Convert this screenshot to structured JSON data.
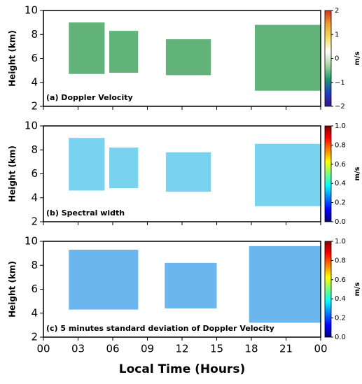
{
  "chart_data": [
    {
      "type": "heatmap",
      "panel_label": "(a) Doppler Velocity",
      "ylabel": "Height (km)",
      "ylim": [
        2,
        10
      ],
      "yticks": [
        2,
        4,
        6,
        8,
        10
      ],
      "regions": [
        {
          "x": [
            2.2,
            5.3
          ],
          "y": [
            4.7,
            9
          ]
        },
        {
          "x": [
            5.7,
            8.2
          ],
          "y": [
            4.8,
            8.3
          ]
        },
        {
          "x": [
            10.6,
            14.5
          ],
          "y": [
            4.6,
            7.6
          ]
        },
        {
          "x": [
            18.3,
            24
          ],
          "y": [
            3.3,
            8.8
          ]
        }
      ],
      "region_color": "#2e9a4e",
      "colorbar": {
        "label": "m/s",
        "lim": [
          -2,
          2
        ],
        "colors": [
          "#3b0f8c",
          "#1f3fbf",
          "#1f9a6a",
          "#a8d8a0",
          "#ffffff",
          "#f2e060",
          "#f0a030",
          "#d03020"
        ],
        "ticks": [
          {
            "value": -2,
            "label": "−2"
          },
          {
            "value": -1,
            "label": "−1"
          },
          0,
          1,
          2
        ]
      }
    },
    {
      "type": "heatmap",
      "panel_label": "(b) Spectral width",
      "ylabel": "Height (km)",
      "ylim": [
        2,
        10
      ],
      "yticks": [
        2,
        4,
        6,
        8,
        10
      ],
      "regions": [
        {
          "x": [
            2.2,
            5.3
          ],
          "y": [
            4.6,
            9
          ]
        },
        {
          "x": [
            5.7,
            8.2
          ],
          "y": [
            4.8,
            8.2
          ]
        },
        {
          "x": [
            10.6,
            14.5
          ],
          "y": [
            4.5,
            7.8
          ]
        },
        {
          "x": [
            18.3,
            24
          ],
          "y": [
            3.3,
            8.5
          ]
        }
      ],
      "region_color": "#4cc4ea",
      "colorbar": {
        "label": "m/s",
        "lim": [
          0,
          1
        ],
        "colors": [
          "#00007f",
          "#0000ff",
          "#007fff",
          "#00ffff",
          "#7fff7f",
          "#ffff00",
          "#ff7f00",
          "#ff0000",
          "#7f0000"
        ],
        "ticks": [
          {
            "value": 0,
            "label": "0.0"
          },
          0.2,
          0.4,
          0.6,
          0.8,
          {
            "value": 1,
            "label": "1.0"
          }
        ]
      }
    },
    {
      "type": "heatmap",
      "panel_label": "(c) 5 minutes standard deviation of Doppler Velocity",
      "ylabel": "Height (km)",
      "ylim": [
        2,
        10
      ],
      "yticks": [
        2,
        4,
        6,
        8,
        10
      ],
      "regions": [
        {
          "x": [
            2.2,
            8.2
          ],
          "y": [
            4.3,
            9.3
          ]
        },
        {
          "x": [
            10.5,
            15
          ],
          "y": [
            4.4,
            8.2
          ]
        },
        {
          "x": [
            17.8,
            24
          ],
          "y": [
            3.2,
            9.6
          ]
        }
      ],
      "region_color": "#3a9ee8",
      "colorbar": {
        "label": "m/s",
        "lim": [
          0,
          1
        ],
        "colors": [
          "#00007f",
          "#0000ff",
          "#007fff",
          "#00ffff",
          "#7fff7f",
          "#ffff00",
          "#ff7f00",
          "#ff0000",
          "#7f0000"
        ],
        "ticks": [
          {
            "value": 0,
            "label": "0.0"
          },
          0.2,
          0.4,
          0.6,
          0.8,
          {
            "value": 1,
            "label": "1.0"
          }
        ]
      },
      "xlabel": "Local Time (Hours)",
      "xlim": [
        0,
        24
      ],
      "xticks": [
        {
          "value": 0,
          "label": "00"
        },
        {
          "value": 3,
          "label": "03"
        },
        {
          "value": 6,
          "label": "06"
        },
        {
          "value": 9,
          "label": "09"
        },
        12,
        15,
        18,
        21,
        {
          "value": 24,
          "label": "00"
        }
      ]
    }
  ]
}
